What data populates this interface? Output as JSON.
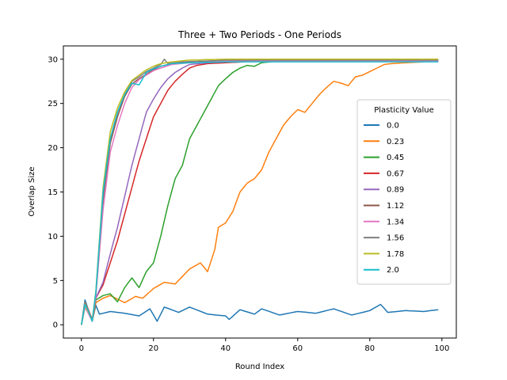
{
  "chart_data": {
    "type": "line",
    "title": "Three + Two Periods - One Periods",
    "xlabel": "Round Index",
    "ylabel": "Overlap Size",
    "xlim": [
      -5,
      104
    ],
    "ylim": [
      -1.5,
      31.5
    ],
    "xticks": [
      0,
      20,
      40,
      60,
      80,
      100
    ],
    "yticks": [
      0,
      5,
      10,
      15,
      20,
      25,
      30
    ],
    "grid": false,
    "legend": {
      "title": "Plasticity Value",
      "placement": "right"
    },
    "series": [
      {
        "name": "0.0",
        "color": "#1f77b4",
        "keypoints": [
          [
            0,
            0
          ],
          [
            1,
            2.8
          ],
          [
            2,
            1.6
          ],
          [
            3,
            0.4
          ],
          [
            4,
            2.2
          ],
          [
            5,
            1.2
          ],
          [
            8,
            1.5
          ],
          [
            12,
            1.3
          ],
          [
            16,
            1.0
          ],
          [
            19,
            1.8
          ],
          [
            21,
            0.4
          ],
          [
            23,
            2.0
          ],
          [
            27,
            1.4
          ],
          [
            30,
            2.0
          ],
          [
            35,
            1.2
          ],
          [
            40,
            1.0
          ],
          [
            41,
            0.6
          ],
          [
            44,
            1.7
          ],
          [
            48,
            1.2
          ],
          [
            50,
            1.8
          ],
          [
            55,
            1.1
          ],
          [
            60,
            1.5
          ],
          [
            65,
            1.3
          ],
          [
            70,
            1.8
          ],
          [
            75,
            1.1
          ],
          [
            80,
            1.6
          ],
          [
            83,
            2.3
          ],
          [
            85,
            1.4
          ],
          [
            90,
            1.6
          ],
          [
            95,
            1.5
          ],
          [
            99,
            1.7
          ]
        ]
      },
      {
        "name": "0.23",
        "color": "#ff7f0e",
        "keypoints": [
          [
            0,
            0
          ],
          [
            1,
            2.5
          ],
          [
            2,
            1.6
          ],
          [
            3,
            0.4
          ],
          [
            4,
            2.5
          ],
          [
            6,
            3.0
          ],
          [
            8,
            3.3
          ],
          [
            10,
            2.9
          ],
          [
            12,
            2.5
          ],
          [
            15,
            3.2
          ],
          [
            17,
            3.0
          ],
          [
            20,
            4.1
          ],
          [
            23,
            4.8
          ],
          [
            26,
            4.6
          ],
          [
            30,
            6.3
          ],
          [
            33,
            7.0
          ],
          [
            35,
            6.0
          ],
          [
            37,
            8.5
          ],
          [
            38,
            11.0
          ],
          [
            40,
            11.5
          ],
          [
            42,
            12.8
          ],
          [
            44,
            15.0
          ],
          [
            46,
            16.0
          ],
          [
            48,
            16.5
          ],
          [
            50,
            17.5
          ],
          [
            52,
            19.5
          ],
          [
            54,
            21.0
          ],
          [
            56,
            22.5
          ],
          [
            58,
            23.5
          ],
          [
            60,
            24.3
          ],
          [
            62,
            24.0
          ],
          [
            64,
            25.0
          ],
          [
            66,
            26.0
          ],
          [
            68,
            26.8
          ],
          [
            70,
            27.5
          ],
          [
            72,
            27.3
          ],
          [
            74,
            27.0
          ],
          [
            76,
            28.0
          ],
          [
            78,
            28.2
          ],
          [
            80,
            28.6
          ],
          [
            82,
            29.0
          ],
          [
            84,
            29.4
          ],
          [
            86,
            29.5
          ],
          [
            90,
            29.6
          ],
          [
            95,
            29.7
          ],
          [
            99,
            29.8
          ]
        ]
      },
      {
        "name": "0.45",
        "color": "#2ca02c",
        "keypoints": [
          [
            0,
            0
          ],
          [
            1,
            2.0
          ],
          [
            2,
            1.3
          ],
          [
            3,
            0.5
          ],
          [
            4,
            2.8
          ],
          [
            6,
            3.3
          ],
          [
            8,
            3.5
          ],
          [
            10,
            2.6
          ],
          [
            12,
            4.2
          ],
          [
            14,
            5.3
          ],
          [
            16,
            4.2
          ],
          [
            18,
            6.0
          ],
          [
            20,
            7.0
          ],
          [
            22,
            10.0
          ],
          [
            24,
            13.5
          ],
          [
            26,
            16.5
          ],
          [
            28,
            18.0
          ],
          [
            30,
            21.0
          ],
          [
            32,
            22.5
          ],
          [
            34,
            24.0
          ],
          [
            36,
            25.5
          ],
          [
            38,
            27.0
          ],
          [
            40,
            27.8
          ],
          [
            42,
            28.5
          ],
          [
            44,
            29.0
          ],
          [
            46,
            29.3
          ],
          [
            48,
            29.2
          ],
          [
            50,
            29.6
          ],
          [
            55,
            29.8
          ],
          [
            60,
            29.8
          ],
          [
            70,
            29.9
          ],
          [
            80,
            29.9
          ],
          [
            90,
            29.9
          ],
          [
            99,
            29.9
          ]
        ]
      },
      {
        "name": "0.67",
        "color": "#d62728",
        "keypoints": [
          [
            0,
            0
          ],
          [
            1,
            2.3
          ],
          [
            2,
            1.6
          ],
          [
            3,
            0.6
          ],
          [
            4,
            3.0
          ],
          [
            6,
            4.5
          ],
          [
            8,
            7.0
          ],
          [
            10,
            9.5
          ],
          [
            12,
            12.5
          ],
          [
            14,
            15.5
          ],
          [
            16,
            18.5
          ],
          [
            18,
            21.0
          ],
          [
            20,
            23.5
          ],
          [
            22,
            25.0
          ],
          [
            24,
            26.5
          ],
          [
            26,
            27.5
          ],
          [
            28,
            28.3
          ],
          [
            30,
            29.0
          ],
          [
            32,
            29.3
          ],
          [
            35,
            29.5
          ],
          [
            40,
            29.6
          ],
          [
            45,
            29.7
          ],
          [
            50,
            29.8
          ],
          [
            60,
            29.8
          ],
          [
            70,
            29.8
          ],
          [
            80,
            29.8
          ],
          [
            90,
            29.8
          ],
          [
            99,
            29.8
          ]
        ]
      },
      {
        "name": "0.89",
        "color": "#9467bd",
        "keypoints": [
          [
            0,
            0
          ],
          [
            1,
            2.2
          ],
          [
            2,
            1.4
          ],
          [
            3,
            0.5
          ],
          [
            4,
            3.0
          ],
          [
            6,
            4.8
          ],
          [
            8,
            8.0
          ],
          [
            10,
            11.0
          ],
          [
            12,
            14.5
          ],
          [
            14,
            18.0
          ],
          [
            16,
            21.0
          ],
          [
            18,
            24.0
          ],
          [
            20,
            25.5
          ],
          [
            22,
            26.8
          ],
          [
            24,
            27.8
          ],
          [
            26,
            28.5
          ],
          [
            28,
            29.0
          ],
          [
            30,
            29.4
          ],
          [
            35,
            29.6
          ],
          [
            40,
            29.7
          ],
          [
            50,
            29.8
          ],
          [
            60,
            29.8
          ],
          [
            70,
            29.8
          ],
          [
            80,
            29.8
          ],
          [
            90,
            29.8
          ],
          [
            99,
            29.8
          ]
        ]
      },
      {
        "name": "1.12",
        "color": "#8c564b",
        "keypoints": [
          [
            0,
            0
          ],
          [
            1,
            2.1
          ],
          [
            2,
            1.3
          ],
          [
            3,
            0.5
          ],
          [
            4,
            3.5
          ],
          [
            6,
            14.0
          ],
          [
            8,
            20.5
          ],
          [
            10,
            23.5
          ],
          [
            12,
            25.8
          ],
          [
            14,
            27.2
          ],
          [
            16,
            27.8
          ],
          [
            18,
            28.3
          ],
          [
            20,
            28.8
          ],
          [
            22,
            29.2
          ],
          [
            25,
            29.5
          ],
          [
            30,
            29.7
          ],
          [
            40,
            29.8
          ],
          [
            50,
            29.8
          ],
          [
            60,
            29.9
          ],
          [
            70,
            29.9
          ],
          [
            80,
            29.9
          ],
          [
            90,
            29.9
          ],
          [
            99,
            29.9
          ]
        ]
      },
      {
        "name": "1.34",
        "color": "#e377c2",
        "keypoints": [
          [
            0,
            0
          ],
          [
            1,
            2.0
          ],
          [
            2,
            1.2
          ],
          [
            3,
            0.4
          ],
          [
            4,
            3.2
          ],
          [
            6,
            13.0
          ],
          [
            8,
            19.5
          ],
          [
            10,
            22.5
          ],
          [
            12,
            25.0
          ],
          [
            14,
            26.8
          ],
          [
            16,
            27.7
          ],
          [
            18,
            28.2
          ],
          [
            20,
            28.7
          ],
          [
            22,
            29.0
          ],
          [
            25,
            29.4
          ],
          [
            30,
            29.6
          ],
          [
            40,
            29.8
          ],
          [
            50,
            29.8
          ],
          [
            60,
            29.8
          ],
          [
            70,
            29.8
          ],
          [
            80,
            29.8
          ],
          [
            90,
            29.8
          ],
          [
            99,
            29.8
          ]
        ]
      },
      {
        "name": "1.56",
        "color": "#7f7f7f",
        "keypoints": [
          [
            0,
            0
          ],
          [
            1,
            2.4
          ],
          [
            2,
            1.5
          ],
          [
            3,
            0.4
          ],
          [
            4,
            3.6
          ],
          [
            6,
            14.5
          ],
          [
            8,
            21.0
          ],
          [
            10,
            24.0
          ],
          [
            12,
            26.0
          ],
          [
            14,
            27.5
          ],
          [
            16,
            28.0
          ],
          [
            18,
            28.6
          ],
          [
            20,
            29.0
          ],
          [
            22,
            29.4
          ],
          [
            23,
            30.0
          ],
          [
            24,
            29.5
          ],
          [
            28,
            29.7
          ],
          [
            35,
            29.8
          ],
          [
            40,
            29.9
          ],
          [
            50,
            29.9
          ],
          [
            60,
            29.9
          ],
          [
            70,
            29.9
          ],
          [
            80,
            29.9
          ],
          [
            90,
            29.9
          ],
          [
            99,
            29.9
          ]
        ]
      },
      {
        "name": "1.78",
        "color": "#bcbd22",
        "keypoints": [
          [
            0,
            0
          ],
          [
            1,
            2.2
          ],
          [
            2,
            1.4
          ],
          [
            3,
            0.5
          ],
          [
            4,
            3.8
          ],
          [
            6,
            15.5
          ],
          [
            8,
            21.8
          ],
          [
            10,
            24.5
          ],
          [
            12,
            26.3
          ],
          [
            14,
            27.6
          ],
          [
            16,
            28.2
          ],
          [
            18,
            28.8
          ],
          [
            20,
            29.2
          ],
          [
            22,
            29.5
          ],
          [
            25,
            29.7
          ],
          [
            30,
            29.9
          ],
          [
            40,
            30.0
          ],
          [
            50,
            30.0
          ],
          [
            60,
            30.0
          ],
          [
            70,
            30.0
          ],
          [
            80,
            30.0
          ],
          [
            90,
            30.0
          ],
          [
            99,
            30.0
          ]
        ]
      },
      {
        "name": "2.0",
        "color": "#17becf",
        "keypoints": [
          [
            0,
            0
          ],
          [
            1,
            2.3
          ],
          [
            2,
            1.5
          ],
          [
            3,
            0.4
          ],
          [
            4,
            3.7
          ],
          [
            6,
            15.0
          ],
          [
            8,
            21.0
          ],
          [
            10,
            24.0
          ],
          [
            12,
            26.0
          ],
          [
            14,
            27.3
          ],
          [
            16,
            27.1
          ],
          [
            18,
            28.5
          ],
          [
            20,
            28.9
          ],
          [
            22,
            29.2
          ],
          [
            25,
            29.5
          ],
          [
            30,
            29.6
          ],
          [
            40,
            29.7
          ],
          [
            50,
            29.7
          ],
          [
            60,
            29.7
          ],
          [
            70,
            29.7
          ],
          [
            80,
            29.7
          ],
          [
            90,
            29.7
          ],
          [
            99,
            29.7
          ]
        ]
      }
    ]
  }
}
